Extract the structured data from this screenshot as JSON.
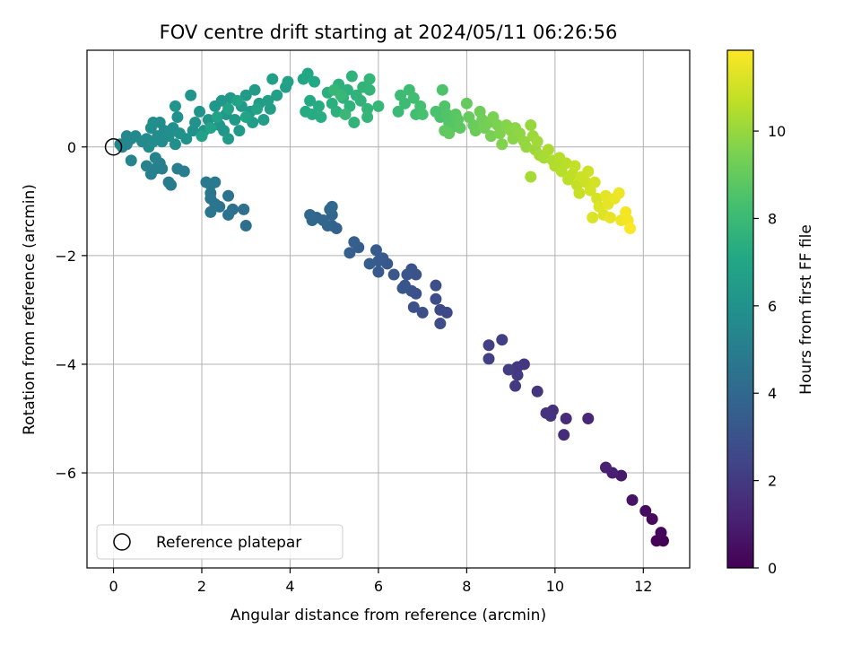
{
  "chart_data": {
    "type": "scatter",
    "title": "FOV centre drift starting at 2024/05/11 06:26:56",
    "xlabel": "Angular distance from reference (arcmin)",
    "ylabel": "Rotation from reference (arcmin)",
    "xlim": [
      -0.6,
      13.05
    ],
    "ylim": [
      -7.75,
      1.78
    ],
    "xticks": [
      0,
      2,
      4,
      6,
      8,
      10,
      12
    ],
    "yticks": [
      0,
      -2,
      -4,
      -6
    ],
    "ytick_labels": [
      "0",
      "−2",
      "−4",
      "−6"
    ],
    "grid": true,
    "colorbar": {
      "label": "Hours from first FF file",
      "colormap": "viridis",
      "range": [
        0,
        11.85
      ],
      "ticks": [
        0,
        2,
        4,
        6,
        8,
        10
      ]
    },
    "legend": {
      "placement": "lower-left",
      "entries": [
        "Reference platepar"
      ]
    },
    "reference_point": {
      "label": "Reference platepar",
      "x": 0,
      "y": 0
    },
    "colors": {
      "grid": "#b0b0b0",
      "axes": "#000000"
    },
    "points": [
      {
        "x": 12.45,
        "y": -7.25,
        "h": 0.05
      },
      {
        "x": 12.3,
        "y": -7.25,
        "h": 0.1
      },
      {
        "x": 12.4,
        "y": -7.1,
        "h": 0.2
      },
      {
        "x": 12.2,
        "y": -6.85,
        "h": 0.3
      },
      {
        "x": 12.05,
        "y": -6.7,
        "h": 0.4
      },
      {
        "x": 11.75,
        "y": -6.5,
        "h": 0.6
      },
      {
        "x": 11.5,
        "y": -6.05,
        "h": 0.8
      },
      {
        "x": 11.3,
        "y": -6.0,
        "h": 1.0
      },
      {
        "x": 11.15,
        "y": -5.9,
        "h": 1.1
      },
      {
        "x": 10.75,
        "y": -5.0,
        "h": 1.3
      },
      {
        "x": 10.25,
        "y": -5.0,
        "h": 1.4
      },
      {
        "x": 10.2,
        "y": -5.3,
        "h": 1.5
      },
      {
        "x": 9.95,
        "y": -4.85,
        "h": 1.6
      },
      {
        "x": 9.9,
        "y": -4.95,
        "h": 1.7
      },
      {
        "x": 9.8,
        "y": -4.9,
        "h": 1.75
      },
      {
        "x": 9.6,
        "y": -4.5,
        "h": 1.8
      },
      {
        "x": 9.3,
        "y": -4.0,
        "h": 1.9
      },
      {
        "x": 9.15,
        "y": -4.05,
        "h": 1.95
      },
      {
        "x": 9.15,
        "y": -4.2,
        "h": 2.0
      },
      {
        "x": 9.1,
        "y": -4.4,
        "h": 2.05
      },
      {
        "x": 8.95,
        "y": -4.1,
        "h": 2.1
      },
      {
        "x": 8.8,
        "y": -3.55,
        "h": 2.15
      },
      {
        "x": 8.5,
        "y": -3.65,
        "h": 2.2
      },
      {
        "x": 8.5,
        "y": -3.9,
        "h": 2.25
      },
      {
        "x": 7.55,
        "y": -3.05,
        "h": 2.6
      },
      {
        "x": 7.4,
        "y": -3.0,
        "h": 2.65
      },
      {
        "x": 7.4,
        "y": -3.25,
        "h": 2.7
      },
      {
        "x": 7.3,
        "y": -2.8,
        "h": 2.75
      },
      {
        "x": 7.3,
        "y": -2.55,
        "h": 2.8
      },
      {
        "x": 7.0,
        "y": -3.05,
        "h": 2.85
      },
      {
        "x": 6.8,
        "y": -2.95,
        "h": 2.9
      },
      {
        "x": 6.85,
        "y": -2.7,
        "h": 2.95
      },
      {
        "x": 6.85,
        "y": -2.35,
        "h": 3.0
      },
      {
        "x": 6.75,
        "y": -2.65,
        "h": 3.0
      },
      {
        "x": 6.75,
        "y": -2.25,
        "h": 3.05
      },
      {
        "x": 6.65,
        "y": -2.35,
        "h": 3.1
      },
      {
        "x": 6.6,
        "y": -2.55,
        "h": 3.1
      },
      {
        "x": 6.55,
        "y": -2.6,
        "h": 3.15
      },
      {
        "x": 6.35,
        "y": -2.35,
        "h": 3.2
      },
      {
        "x": 6.2,
        "y": -2.15,
        "h": 3.25
      },
      {
        "x": 6.1,
        "y": -2.05,
        "h": 3.3
      },
      {
        "x": 6.0,
        "y": -2.3,
        "h": 3.3
      },
      {
        "x": 5.95,
        "y": -1.9,
        "h": 3.35
      },
      {
        "x": 6.0,
        "y": -2.1,
        "h": 3.4
      },
      {
        "x": 5.8,
        "y": -2.15,
        "h": 3.45
      },
      {
        "x": 5.55,
        "y": -1.85,
        "h": 3.5
      },
      {
        "x": 5.45,
        "y": -1.75,
        "h": 3.55
      },
      {
        "x": 5.35,
        "y": -1.95,
        "h": 3.6
      },
      {
        "x": 5.05,
        "y": -1.5,
        "h": 3.7
      },
      {
        "x": 4.95,
        "y": -1.45,
        "h": 3.75
      },
      {
        "x": 4.95,
        "y": -1.25,
        "h": 3.8
      },
      {
        "x": 4.85,
        "y": -1.45,
        "h": 3.85
      },
      {
        "x": 4.75,
        "y": -1.35,
        "h": 3.9
      },
      {
        "x": 4.6,
        "y": -1.3,
        "h": 3.9
      },
      {
        "x": 4.5,
        "y": -1.35,
        "h": 3.95
      },
      {
        "x": 4.45,
        "y": -1.25,
        "h": 4.0
      },
      {
        "x": 4.9,
        "y": -1.15,
        "h": 4.0
      },
      {
        "x": 4.95,
        "y": -1.1,
        "h": 4.05
      },
      {
        "x": 3.0,
        "y": -1.45,
        "h": 4.3
      },
      {
        "x": 2.95,
        "y": -1.15,
        "h": 4.35
      },
      {
        "x": 2.7,
        "y": -1.15,
        "h": 4.4
      },
      {
        "x": 2.6,
        "y": -1.25,
        "h": 4.45
      },
      {
        "x": 2.6,
        "y": -0.9,
        "h": 4.5
      },
      {
        "x": 2.4,
        "y": -1.1,
        "h": 4.55
      },
      {
        "x": 2.2,
        "y": -1.2,
        "h": 4.6
      },
      {
        "x": 2.3,
        "y": -1.05,
        "h": 4.6
      },
      {
        "x": 2.2,
        "y": -0.95,
        "h": 4.65
      },
      {
        "x": 2.2,
        "y": -0.85,
        "h": 4.7
      },
      {
        "x": 2.2,
        "y": -0.7,
        "h": 4.75
      },
      {
        "x": 2.1,
        "y": -0.65,
        "h": 4.8
      },
      {
        "x": 2.3,
        "y": -0.65,
        "h": 4.8
      },
      {
        "x": 1.3,
        "y": -0.7,
        "h": 4.9
      },
      {
        "x": 1.25,
        "y": -0.65,
        "h": 4.95
      },
      {
        "x": 1.6,
        "y": -0.45,
        "h": 5.0
      },
      {
        "x": 1.45,
        "y": -0.4,
        "h": 5.0
      },
      {
        "x": 1.1,
        "y": -0.4,
        "h": 5.05
      },
      {
        "x": 0.95,
        "y": -0.4,
        "h": 5.1
      },
      {
        "x": 0.85,
        "y": -0.5,
        "h": 5.1
      },
      {
        "x": 1.05,
        "y": -0.3,
        "h": 5.15
      },
      {
        "x": 0.75,
        "y": -0.35,
        "h": 5.2
      },
      {
        "x": 0.95,
        "y": -0.2,
        "h": 5.2
      },
      {
        "x": 0.4,
        "y": -0.25,
        "h": 5.3
      },
      {
        "x": 0.2,
        "y": 0.0,
        "h": 5.35
      },
      {
        "x": 0.15,
        "y": 0.05,
        "h": 5.4
      },
      {
        "x": 0.3,
        "y": 0.05,
        "h": 5.45
      },
      {
        "x": 0.3,
        "y": 0.2,
        "h": 5.5
      },
      {
        "x": 0.4,
        "y": 0.15,
        "h": 5.5
      },
      {
        "x": 0.5,
        "y": 0.2,
        "h": 5.55
      },
      {
        "x": 0.65,
        "y": 0.1,
        "h": 5.6
      },
      {
        "x": 0.75,
        "y": 0.15,
        "h": 5.6
      },
      {
        "x": 0.8,
        "y": 0.0,
        "h": 5.65
      },
      {
        "x": 0.9,
        "y": 0.1,
        "h": 5.7
      },
      {
        "x": 1.0,
        "y": 0.2,
        "h": 5.7
      },
      {
        "x": 1.1,
        "y": 0.1,
        "h": 5.75
      },
      {
        "x": 1.15,
        "y": 0.3,
        "h": 5.75
      },
      {
        "x": 1.05,
        "y": 0.45,
        "h": 5.8
      },
      {
        "x": 0.85,
        "y": 0.35,
        "h": 5.8
      },
      {
        "x": 0.9,
        "y": 0.45,
        "h": 5.85
      },
      {
        "x": 1.25,
        "y": 0.2,
        "h": 5.85
      },
      {
        "x": 1.35,
        "y": 0.35,
        "h": 5.9
      },
      {
        "x": 1.4,
        "y": 0.05,
        "h": 5.9
      },
      {
        "x": 1.5,
        "y": 0.25,
        "h": 5.95
      },
      {
        "x": 1.45,
        "y": 0.55,
        "h": 5.95
      },
      {
        "x": 1.65,
        "y": 0.15,
        "h": 6.0
      },
      {
        "x": 1.8,
        "y": 0.3,
        "h": 6.0
      },
      {
        "x": 1.85,
        "y": 0.45,
        "h": 6.05
      },
      {
        "x": 1.95,
        "y": 0.65,
        "h": 6.05
      },
      {
        "x": 1.75,
        "y": 0.95,
        "h": 6.1
      },
      {
        "x": 1.4,
        "y": 0.75,
        "h": 6.1
      },
      {
        "x": 2.05,
        "y": 0.3,
        "h": 6.15
      },
      {
        "x": 2.15,
        "y": 0.5,
        "h": 6.15
      },
      {
        "x": 2.3,
        "y": 0.75,
        "h": 6.2
      },
      {
        "x": 2.4,
        "y": 0.4,
        "h": 6.2
      },
      {
        "x": 2.5,
        "y": 0.3,
        "h": 6.25
      },
      {
        "x": 2.55,
        "y": 0.6,
        "h": 6.25
      },
      {
        "x": 2.45,
        "y": 0.85,
        "h": 6.3
      },
      {
        "x": 2.65,
        "y": 0.9,
        "h": 6.3
      },
      {
        "x": 2.75,
        "y": 0.5,
        "h": 6.35
      },
      {
        "x": 2.85,
        "y": 0.3,
        "h": 6.35
      },
      {
        "x": 2.6,
        "y": 0.15,
        "h": 6.4
      },
      {
        "x": 2.9,
        "y": 0.75,
        "h": 6.4
      },
      {
        "x": 3.0,
        "y": 0.95,
        "h": 6.45
      },
      {
        "x": 3.1,
        "y": 0.65,
        "h": 6.45
      },
      {
        "x": 3.2,
        "y": 1.05,
        "h": 6.5
      },
      {
        "x": 3.3,
        "y": 0.8,
        "h": 6.5
      },
      {
        "x": 3.15,
        "y": 0.45,
        "h": 6.55
      },
      {
        "x": 3.4,
        "y": 0.5,
        "h": 6.55
      },
      {
        "x": 3.5,
        "y": 0.85,
        "h": 6.6
      },
      {
        "x": 3.55,
        "y": 0.7,
        "h": 6.6
      },
      {
        "x": 3.7,
        "y": 0.95,
        "h": 6.65
      },
      {
        "x": 3.6,
        "y": 1.25,
        "h": 6.65
      },
      {
        "x": 3.9,
        "y": 1.1,
        "h": 6.7
      },
      {
        "x": 3.95,
        "y": 1.2,
        "h": 6.75
      },
      {
        "x": 2.0,
        "y": 0.2,
        "h": 6.75
      },
      {
        "x": 2.2,
        "y": 0.35,
        "h": 6.8
      },
      {
        "x": 2.35,
        "y": 0.55,
        "h": 6.8
      },
      {
        "x": 2.6,
        "y": 0.7,
        "h": 6.85
      },
      {
        "x": 2.8,
        "y": 0.85,
        "h": 6.85
      },
      {
        "x": 3.0,
        "y": 0.55,
        "h": 6.9
      },
      {
        "x": 3.25,
        "y": 0.7,
        "h": 6.9
      },
      {
        "x": 4.3,
        "y": 1.25,
        "h": 7.0
      },
      {
        "x": 4.4,
        "y": 1.35,
        "h": 7.05
      },
      {
        "x": 4.55,
        "y": 1.2,
        "h": 7.1
      },
      {
        "x": 4.45,
        "y": 0.85,
        "h": 7.15
      },
      {
        "x": 4.35,
        "y": 0.65,
        "h": 7.2
      },
      {
        "x": 4.5,
        "y": 0.6,
        "h": 7.25
      },
      {
        "x": 4.65,
        "y": 0.75,
        "h": 7.3
      },
      {
        "x": 4.7,
        "y": 0.55,
        "h": 7.35
      },
      {
        "x": 4.85,
        "y": 1.0,
        "h": 7.4
      },
      {
        "x": 4.95,
        "y": 0.8,
        "h": 7.45
      },
      {
        "x": 5.05,
        "y": 0.65,
        "h": 7.5
      },
      {
        "x": 5.1,
        "y": 1.15,
        "h": 7.5
      },
      {
        "x": 5.2,
        "y": 0.9,
        "h": 7.55
      },
      {
        "x": 5.3,
        "y": 1.05,
        "h": 7.55
      },
      {
        "x": 5.35,
        "y": 0.75,
        "h": 7.6
      },
      {
        "x": 5.4,
        "y": 1.3,
        "h": 7.6
      },
      {
        "x": 5.5,
        "y": 0.95,
        "h": 7.65
      },
      {
        "x": 5.6,
        "y": 0.85,
        "h": 7.65
      },
      {
        "x": 5.65,
        "y": 1.1,
        "h": 7.7
      },
      {
        "x": 5.45,
        "y": 0.45,
        "h": 7.7
      },
      {
        "x": 5.75,
        "y": 0.7,
        "h": 7.75
      },
      {
        "x": 5.8,
        "y": 1.05,
        "h": 7.75
      },
      {
        "x": 5.8,
        "y": 1.25,
        "h": 7.8
      },
      {
        "x": 5.75,
        "y": 0.55,
        "h": 7.8
      },
      {
        "x": 6.0,
        "y": 0.75,
        "h": 7.85
      },
      {
        "x": 5.0,
        "y": 1.05,
        "h": 7.85
      },
      {
        "x": 5.15,
        "y": 0.95,
        "h": 7.9
      },
      {
        "x": 5.25,
        "y": 0.6,
        "h": 7.9
      },
      {
        "x": 6.45,
        "y": 0.65,
        "h": 8.0
      },
      {
        "x": 6.5,
        "y": 0.95,
        "h": 8.05
      },
      {
        "x": 6.6,
        "y": 0.8,
        "h": 8.1
      },
      {
        "x": 6.7,
        "y": 1.05,
        "h": 8.15
      },
      {
        "x": 6.8,
        "y": 0.9,
        "h": 8.2
      },
      {
        "x": 6.85,
        "y": 0.6,
        "h": 8.25
      },
      {
        "x": 6.95,
        "y": 0.75,
        "h": 8.3
      },
      {
        "x": 7.0,
        "y": 0.6,
        "h": 8.35
      },
      {
        "x": 7.3,
        "y": 0.65,
        "h": 8.4
      },
      {
        "x": 7.4,
        "y": 0.55,
        "h": 8.45
      },
      {
        "x": 7.45,
        "y": 1.05,
        "h": 8.5
      },
      {
        "x": 7.5,
        "y": 0.75,
        "h": 8.55
      },
      {
        "x": 7.55,
        "y": 0.6,
        "h": 8.6
      },
      {
        "x": 7.6,
        "y": 0.45,
        "h": 8.65
      },
      {
        "x": 7.65,
        "y": 0.35,
        "h": 8.7
      },
      {
        "x": 7.75,
        "y": 0.6,
        "h": 8.75
      },
      {
        "x": 7.8,
        "y": 0.5,
        "h": 8.8
      },
      {
        "x": 7.85,
        "y": 0.35,
        "h": 8.85
      },
      {
        "x": 7.5,
        "y": 0.3,
        "h": 8.9
      },
      {
        "x": 7.6,
        "y": 0.25,
        "h": 8.95
      },
      {
        "x": 8.0,
        "y": 0.8,
        "h": 9.0
      },
      {
        "x": 8.05,
        "y": 0.55,
        "h": 9.05
      },
      {
        "x": 8.15,
        "y": 0.4,
        "h": 9.1
      },
      {
        "x": 8.2,
        "y": 0.3,
        "h": 9.15
      },
      {
        "x": 8.3,
        "y": 0.65,
        "h": 9.2
      },
      {
        "x": 8.35,
        "y": 0.5,
        "h": 9.25
      },
      {
        "x": 8.4,
        "y": 0.35,
        "h": 9.3
      },
      {
        "x": 8.5,
        "y": 0.45,
        "h": 9.35
      },
      {
        "x": 8.55,
        "y": 0.2,
        "h": 9.4
      },
      {
        "x": 8.6,
        "y": 0.55,
        "h": 9.45
      },
      {
        "x": 8.7,
        "y": 0.4,
        "h": 9.5
      },
      {
        "x": 8.75,
        "y": 0.25,
        "h": 9.55
      },
      {
        "x": 8.8,
        "y": 0.05,
        "h": 9.6
      },
      {
        "x": 8.9,
        "y": 0.4,
        "h": 9.65
      },
      {
        "x": 9.0,
        "y": 0.3,
        "h": 9.7
      },
      {
        "x": 9.05,
        "y": 0.15,
        "h": 9.75
      },
      {
        "x": 9.1,
        "y": 0.35,
        "h": 9.8
      },
      {
        "x": 9.2,
        "y": 0.25,
        "h": 9.85
      },
      {
        "x": 9.3,
        "y": 0.1,
        "h": 9.9
      },
      {
        "x": 9.35,
        "y": 0.0,
        "h": 9.95
      },
      {
        "x": 9.45,
        "y": 0.4,
        "h": 10.0
      },
      {
        "x": 9.5,
        "y": 0.2,
        "h": 10.05
      },
      {
        "x": 9.55,
        "y": -0.05,
        "h": 10.1
      },
      {
        "x": 9.6,
        "y": 0.1,
        "h": 10.15
      },
      {
        "x": 9.65,
        "y": -0.15,
        "h": 10.2
      },
      {
        "x": 9.45,
        "y": -0.55,
        "h": 10.25
      },
      {
        "x": 9.75,
        "y": -0.2,
        "h": 10.3
      },
      {
        "x": 9.85,
        "y": -0.05,
        "h": 10.35
      },
      {
        "x": 9.95,
        "y": -0.25,
        "h": 10.4
      },
      {
        "x": 10.0,
        "y": -0.35,
        "h": 10.45
      },
      {
        "x": 10.1,
        "y": -0.2,
        "h": 10.5
      },
      {
        "x": 10.15,
        "y": -0.45,
        "h": 10.55
      },
      {
        "x": 10.25,
        "y": -0.3,
        "h": 10.6
      },
      {
        "x": 10.3,
        "y": -0.6,
        "h": 10.65
      },
      {
        "x": 10.4,
        "y": -0.5,
        "h": 10.7
      },
      {
        "x": 10.45,
        "y": -0.35,
        "h": 10.75
      },
      {
        "x": 10.5,
        "y": -0.7,
        "h": 10.8
      },
      {
        "x": 10.55,
        "y": -0.85,
        "h": 10.85
      },
      {
        "x": 10.6,
        "y": -0.55,
        "h": 10.9
      },
      {
        "x": 10.7,
        "y": -0.65,
        "h": 10.95
      },
      {
        "x": 10.75,
        "y": -0.45,
        "h": 11.0
      },
      {
        "x": 10.8,
        "y": -0.8,
        "h": 11.05
      },
      {
        "x": 10.9,
        "y": -0.65,
        "h": 11.1
      },
      {
        "x": 10.95,
        "y": -0.95,
        "h": 11.15
      },
      {
        "x": 10.85,
        "y": -1.3,
        "h": 11.2
      },
      {
        "x": 11.0,
        "y": -1.1,
        "h": 11.25
      },
      {
        "x": 11.1,
        "y": -1.25,
        "h": 11.3
      },
      {
        "x": 11.15,
        "y": -0.9,
        "h": 11.35
      },
      {
        "x": 11.2,
        "y": -1.05,
        "h": 11.4
      },
      {
        "x": 11.25,
        "y": -1.3,
        "h": 11.45
      },
      {
        "x": 11.35,
        "y": -0.95,
        "h": 11.5
      },
      {
        "x": 11.45,
        "y": -0.85,
        "h": 11.55
      },
      {
        "x": 11.5,
        "y": -1.35,
        "h": 11.6
      },
      {
        "x": 11.6,
        "y": -1.2,
        "h": 11.65
      },
      {
        "x": 11.65,
        "y": -1.35,
        "h": 11.7
      },
      {
        "x": 11.7,
        "y": -1.5,
        "h": 11.8
      }
    ]
  }
}
